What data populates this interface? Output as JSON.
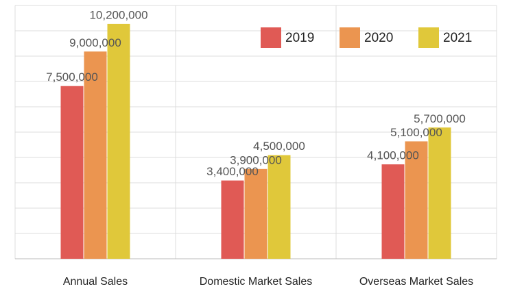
{
  "chart_data": {
    "type": "bar",
    "categories": [
      "Annual Sales",
      "Domestic Market Sales",
      "Overseas Market Sales"
    ],
    "series": [
      {
        "name": "2019",
        "color": "#e05a55",
        "values": [
          7500000,
          3400000,
          4100000
        ],
        "value_labels": [
          "7,500,000",
          "3,400,000",
          "4,100,000"
        ]
      },
      {
        "name": "2020",
        "color": "#eb9550",
        "values": [
          9000000,
          3900000,
          5100000
        ],
        "value_labels": [
          "9,000,000",
          "3,900,000",
          "5,100,000"
        ]
      },
      {
        "name": "2021",
        "color": "#e0c83a",
        "values": [
          10200000,
          4500000,
          5700000
        ],
        "value_labels": [
          "10,200,000",
          "4,500,000",
          "5,700,000"
        ]
      }
    ],
    "ylim": [
      0,
      11000000
    ],
    "yticks": [
      0,
      1100000,
      2200000,
      3300000,
      4400000,
      5500000,
      6600000,
      7700000,
      8800000,
      9900000,
      11000000
    ],
    "show_ytick_labels": false,
    "grid": true,
    "legend": "top-right"
  }
}
